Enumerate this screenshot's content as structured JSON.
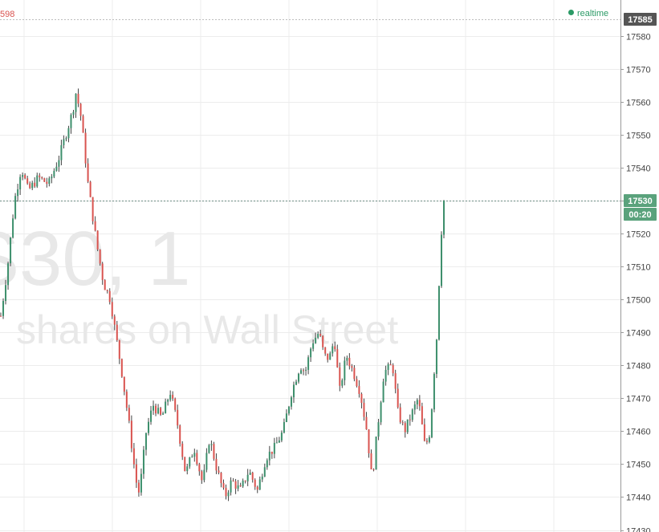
{
  "header": {
    "top_left_value": "598",
    "realtime_label": "realtime"
  },
  "watermark": {
    "symbol_line": "S30, 1",
    "name_line": "shares on Wall Street"
  },
  "price_tags": {
    "high_marker": "17585",
    "last_price": "17530",
    "countdown": "00:20"
  },
  "colors": {
    "up": "#3d8f6c",
    "down": "#d9534f",
    "wick": "#444444",
    "grid": "#ececec",
    "axis_text": "#444444",
    "watermark": "#e8e8e8",
    "tag_dark": "#555555",
    "tag_green": "#5aa27c",
    "high_dash": "#bdbdbd",
    "last_dash": "#6f8f85"
  },
  "chart_data": {
    "type": "candlestick",
    "timeframe": "1",
    "y_axis": {
      "side": "right",
      "ticks": [
        17430,
        17440,
        17450,
        17460,
        17470,
        17480,
        17490,
        17500,
        17510,
        17520,
        17530,
        17540,
        17550,
        17560,
        17570,
        17580
      ],
      "range": [
        17430,
        17587
      ]
    },
    "grid": true,
    "high_marker_line": 17585,
    "last_price_line": 17530,
    "candle_count": 184,
    "price_path_anchors": [
      [
        0,
        17495
      ],
      [
        4,
        17510
      ],
      [
        8,
        17530
      ],
      [
        12,
        17540
      ],
      [
        16,
        17533
      ],
      [
        22,
        17537
      ],
      [
        28,
        17535
      ],
      [
        34,
        17543
      ],
      [
        38,
        17550
      ],
      [
        42,
        17557
      ],
      [
        44,
        17563
      ],
      [
        47,
        17555
      ],
      [
        51,
        17535
      ],
      [
        56,
        17517
      ],
      [
        60,
        17505
      ],
      [
        64,
        17500
      ],
      [
        67,
        17490
      ],
      [
        71,
        17477
      ],
      [
        75,
        17462
      ],
      [
        79,
        17445
      ],
      [
        81,
        17441
      ],
      [
        85,
        17460
      ],
      [
        89,
        17468
      ],
      [
        94,
        17464
      ],
      [
        99,
        17472
      ],
      [
        103,
        17463
      ],
      [
        108,
        17447
      ],
      [
        113,
        17455
      ],
      [
        118,
        17444
      ],
      [
        122,
        17458
      ],
      [
        126,
        17449
      ],
      [
        131,
        17440
      ],
      [
        135,
        17445
      ],
      [
        140,
        17442
      ],
      [
        145,
        17448
      ],
      [
        150,
        17442
      ],
      [
        155,
        17452
      ],
      [
        160,
        17455
      ],
      [
        165,
        17460
      ],
      [
        170,
        17472
      ],
      [
        175,
        17480
      ],
      [
        178,
        17478
      ],
      [
        182,
        17487
      ],
      [
        186,
        17490
      ],
      [
        189,
        17483
      ],
      [
        192,
        17482
      ],
      [
        195,
        17488
      ],
      [
        198,
        17472
      ],
      [
        202,
        17483
      ],
      [
        206,
        17478
      ],
      [
        210,
        17472
      ],
      [
        214,
        17460
      ],
      [
        217,
        17445
      ],
      [
        220,
        17460
      ],
      [
        224,
        17478
      ],
      [
        229,
        17480
      ],
      [
        232,
        17466
      ],
      [
        236,
        17460
      ],
      [
        240,
        17465
      ],
      [
        244,
        17470
      ],
      [
        248,
        17455
      ],
      [
        251,
        17460
      ],
      [
        253,
        17476
      ],
      [
        255,
        17490
      ],
      [
        256,
        17503
      ],
      [
        257,
        17515
      ],
      [
        258,
        17525
      ],
      [
        259,
        17530
      ]
    ]
  }
}
